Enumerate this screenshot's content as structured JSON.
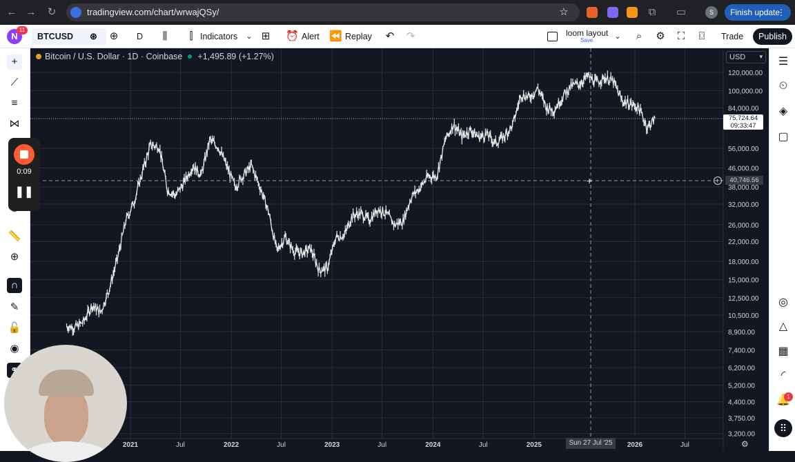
{
  "browser": {
    "url": "tradingview.com/chart/wrwajQSy/",
    "profile_letter": "S",
    "finish_update_label": "Finish update"
  },
  "toolbar": {
    "logo_letter": "N",
    "notification_count": "11",
    "symbol": "BTCUSD",
    "interval": "D",
    "indicators_label": "Indicators",
    "alert_label": "Alert",
    "replay_label": "Replay",
    "layout_name": "loom layout",
    "layout_save": "Save",
    "trade_label": "Trade",
    "publish_label": "Publish"
  },
  "recorder": {
    "time": "0:09"
  },
  "right_sidebar": {
    "notification_badge": "1"
  },
  "chart": {
    "legend_title": "Bitcoin / U.S. Dollar · 1D · Coinbase",
    "legend_change": "+1,495.89 (+1.27%)",
    "currency": "USD",
    "last_price": "75,724.64",
    "countdown": "09:33:47",
    "crosshair_price": "40,746.56",
    "crosshair_date": "Sun 27 Jul '25",
    "colors": {
      "background": "#131722",
      "candle": "#e6e6e6",
      "grid": "#2a2e39",
      "text": "#d1d4dc"
    }
  },
  "chart_data": {
    "type": "line",
    "title": "Bitcoin / U.S. Dollar · 1D · Coinbase",
    "y_scale": "log",
    "ylim": [
      3200,
      140000
    ],
    "y_ticks": [
      "120,000.00",
      "100,000.00",
      "84,000.00",
      "56,000.00",
      "46,000.00",
      "38,000.00",
      "32,000.00",
      "26,000.00",
      "22,000.00",
      "18,000.00",
      "15,000.00",
      "12,500.00",
      "10,500.00",
      "8,900.00",
      "7,400.00",
      "6,200.00",
      "5,200.00",
      "4,400.00",
      "3,750.00",
      "3,200.00"
    ],
    "x_ticks": [
      "2021",
      "Jul",
      "2022",
      "Jul",
      "2023",
      "Jul",
      "2024",
      "Jul",
      "2025",
      "2026",
      "Jul"
    ],
    "series": [
      {
        "x": [
          "2020-05",
          "2020-06",
          "2020-07",
          "2020-08",
          "2020-09",
          "2020-10",
          "2020-11",
          "2020-12",
          "2021-01",
          "2021-02",
          "2021-03",
          "2021-04",
          "2021-05",
          "2021-06",
          "2021-07",
          "2021-08",
          "2021-09",
          "2021-10",
          "2021-11",
          "2021-12",
          "2022-01",
          "2022-02",
          "2022-03",
          "2022-04",
          "2022-05",
          "2022-06",
          "2022-07",
          "2022-08",
          "2022-09",
          "2022-10",
          "2022-11",
          "2022-12",
          "2023-01",
          "2023-02",
          "2023-03",
          "2023-04",
          "2023-05",
          "2023-06",
          "2023-07",
          "2023-08",
          "2023-09",
          "2023-10",
          "2023-11",
          "2023-12",
          "2024-01",
          "2024-02",
          "2024-03",
          "2024-04",
          "2024-05",
          "2024-06",
          "2024-07",
          "2024-08",
          "2024-09",
          "2024-10",
          "2024-11",
          "2024-12",
          "2025-01",
          "2025-02",
          "2025-03",
          "2025-04",
          "2025-05",
          "2025-06",
          "2025-07",
          "2025-08",
          "2025-09",
          "2025-10",
          "2025-11",
          "2025-12",
          "2026-01",
          "2026-02",
          "2026-03"
        ],
        "y": [
          9400,
          9300,
          9800,
          11600,
          10800,
          13500,
          18500,
          27000,
          33000,
          45000,
          58000,
          57000,
          37000,
          35000,
          40000,
          47000,
          43000,
          61000,
          57000,
          47000,
          38000,
          43000,
          47000,
          38000,
          30000,
          20000,
          23000,
          20000,
          19500,
          20500,
          16500,
          16800,
          23000,
          23500,
          28500,
          29200,
          27200,
          30500,
          29200,
          26000,
          27000,
          34500,
          37700,
          42300,
          42500,
          61000,
          71000,
          63000,
          67500,
          62700,
          64600,
          59000,
          63300,
          70200,
          96400,
          93400,
          102400,
          84300,
          82500,
          94200,
          104600,
          107100,
          115700,
          108200,
          114000,
          109500,
          90400,
          87500,
          84000,
          69000,
          75700
        ]
      }
    ]
  }
}
